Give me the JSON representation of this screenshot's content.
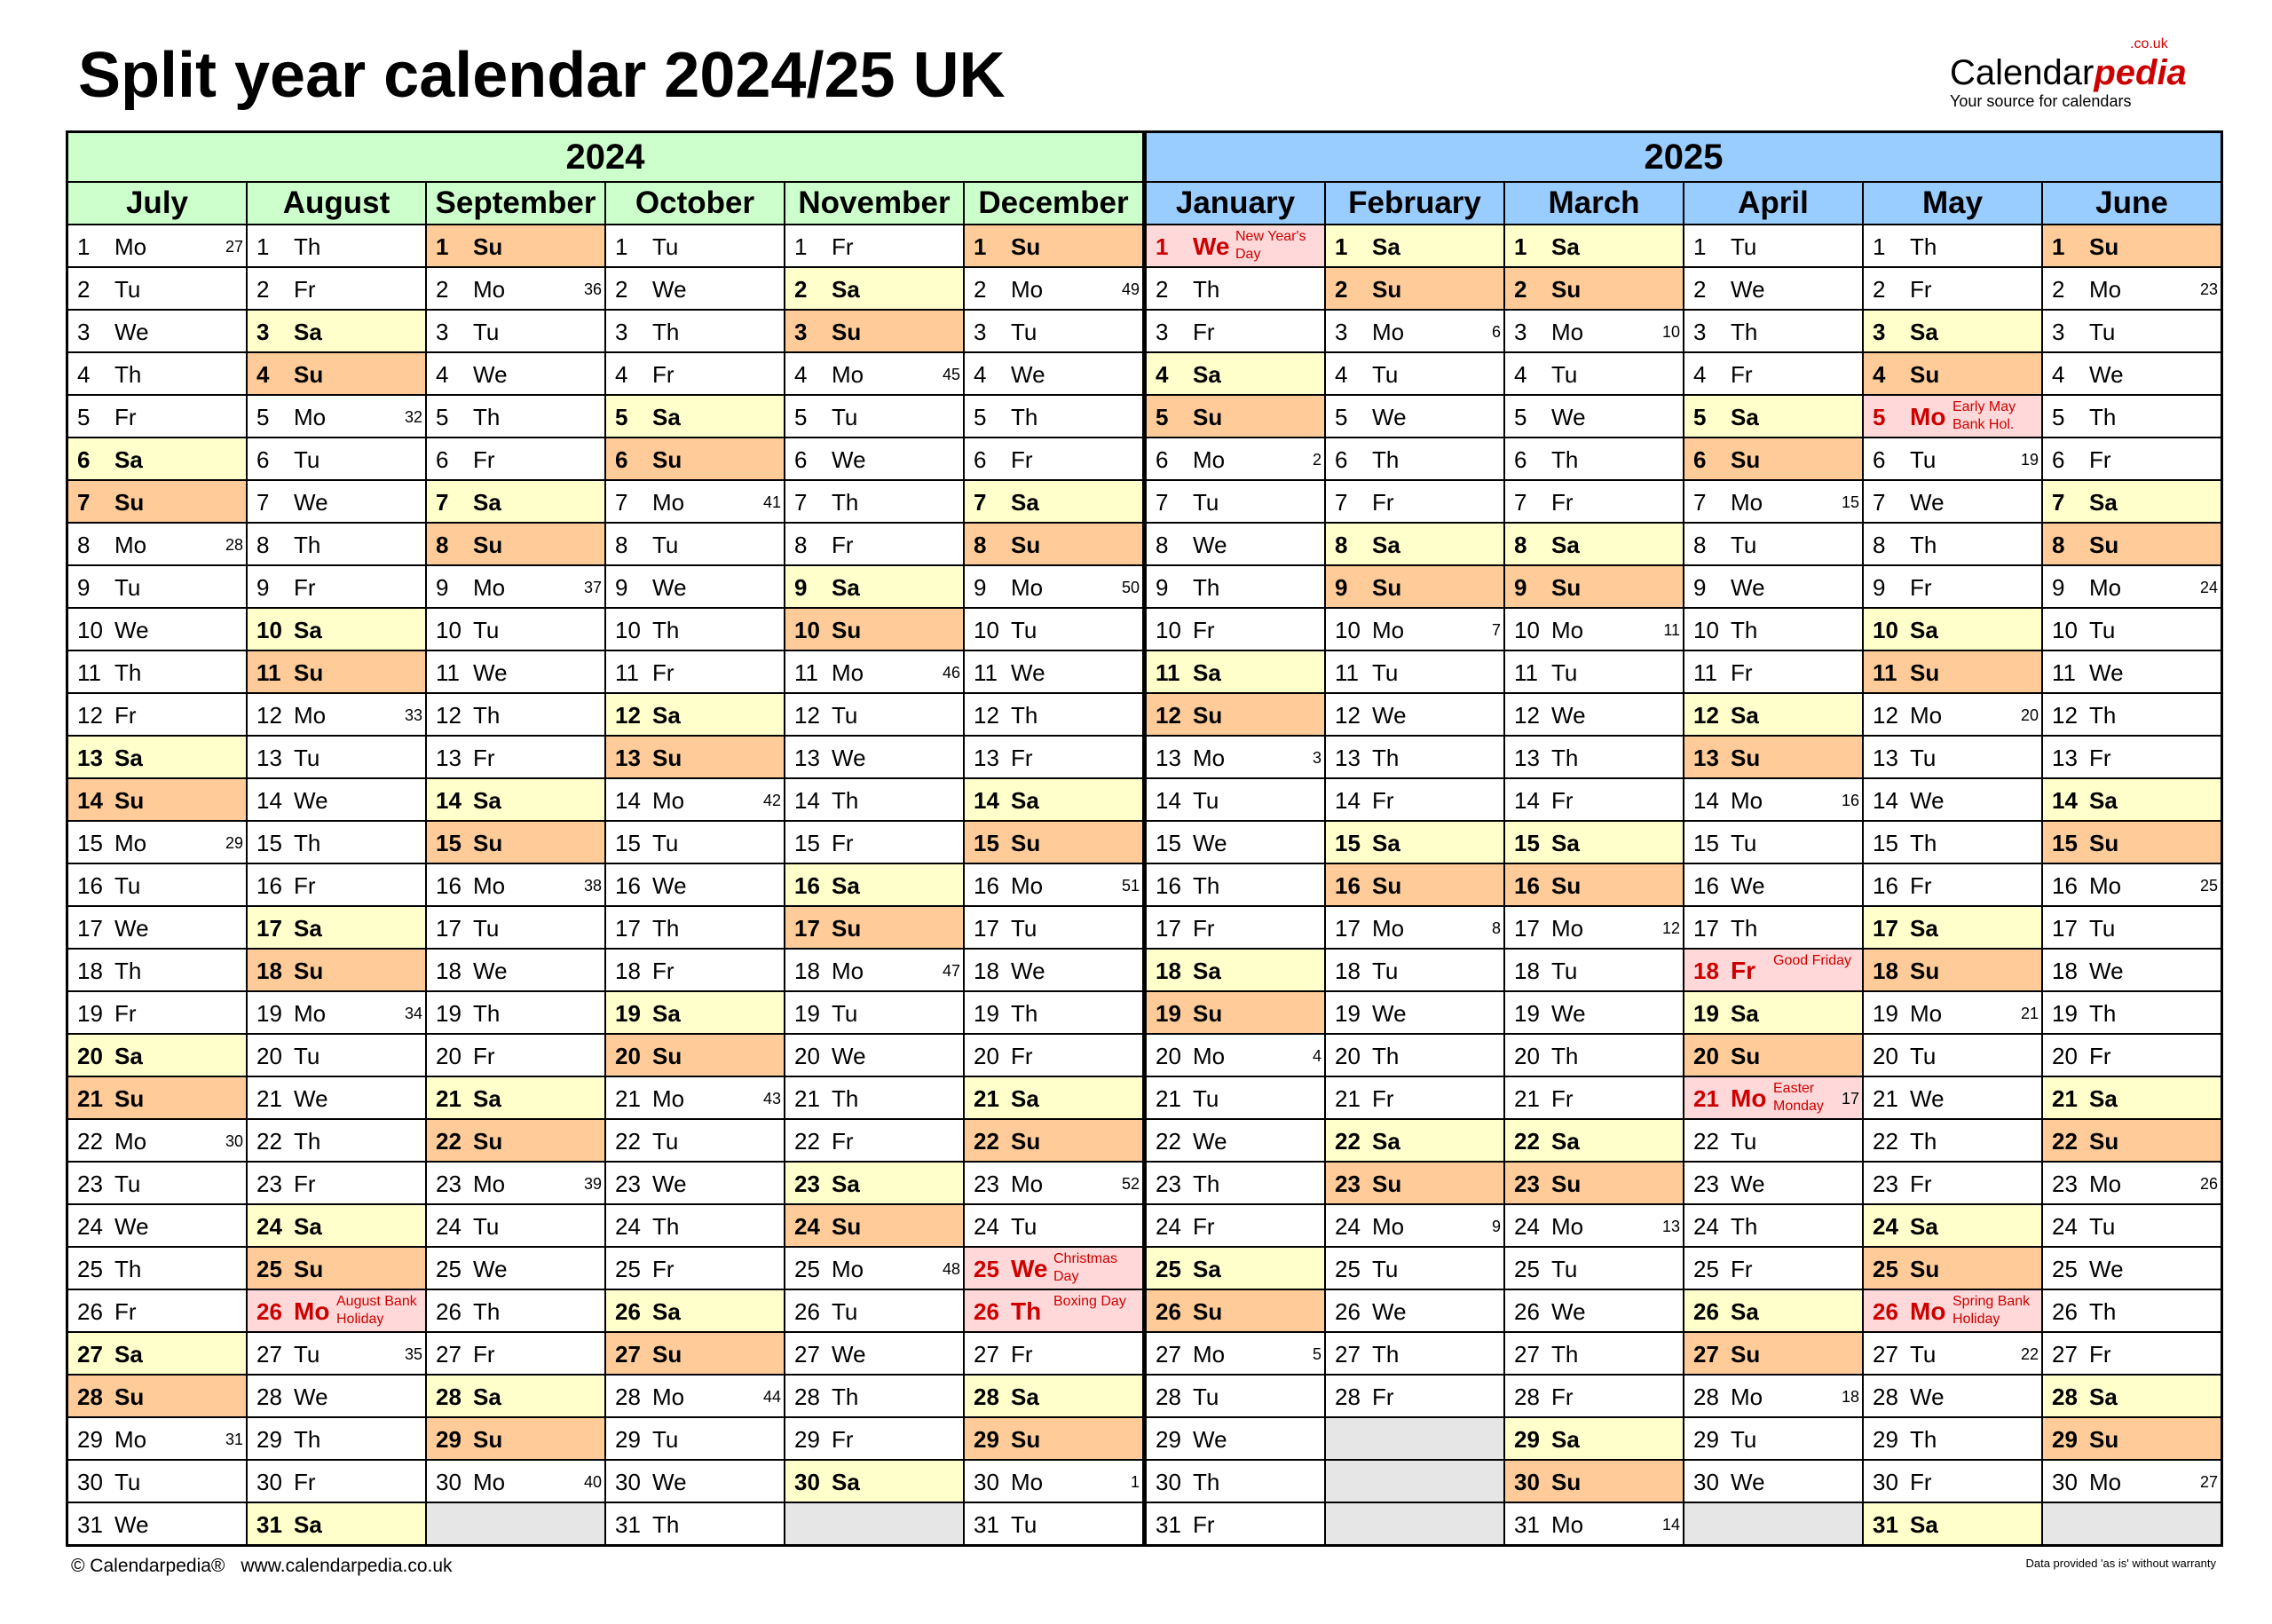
{
  "title": "Split year calendar 2024/25 UK",
  "logo": {
    "text": "Calendar",
    "accent": "pedia",
    "domain": ".co.uk",
    "tagline": "Your source for calendars"
  },
  "years": [
    "2024",
    "2025"
  ],
  "weekdays": [
    "Mo",
    "Tu",
    "We",
    "Th",
    "Fr",
    "Sa",
    "Su"
  ],
  "colors": {
    "year2024": "#ccffcc",
    "year2025": "#99ccff",
    "saturday": "#ffffcc",
    "sunday": "#ffcc99",
    "holiday": "#ffd9d9",
    "holiday_text": "#cc0000",
    "empty": "#e6e6e6"
  },
  "months": [
    {
      "name": "July",
      "year": "2024",
      "first_weekday": "Mo",
      "days": 31,
      "week_numbers": {
        "1": 27,
        "8": 28,
        "15": 29,
        "22": 30,
        "29": 31
      },
      "holidays": {}
    },
    {
      "name": "August",
      "year": "2024",
      "first_weekday": "Th",
      "days": 31,
      "week_numbers": {
        "5": 32,
        "12": 33,
        "19": 34,
        "27": 35
      },
      "holidays": {
        "26": "August Bank Holiday"
      }
    },
    {
      "name": "September",
      "year": "2024",
      "first_weekday": "Su",
      "days": 30,
      "week_numbers": {
        "2": 36,
        "9": 37,
        "16": 38,
        "23": 39,
        "30": 40
      },
      "holidays": {}
    },
    {
      "name": "October",
      "year": "2024",
      "first_weekday": "Tu",
      "days": 31,
      "week_numbers": {
        "7": 41,
        "14": 42,
        "21": 43,
        "28": 44
      },
      "holidays": {}
    },
    {
      "name": "November",
      "year": "2024",
      "first_weekday": "Fr",
      "days": 30,
      "week_numbers": {
        "4": 45,
        "11": 46,
        "18": 47,
        "25": 48
      },
      "holidays": {}
    },
    {
      "name": "December",
      "year": "2024",
      "first_weekday": "Su",
      "days": 31,
      "week_numbers": {
        "2": 49,
        "9": 50,
        "16": 51,
        "23": 52,
        "30": 1
      },
      "holidays": {
        "25": "Christmas Day",
        "26": "Boxing Day"
      }
    },
    {
      "name": "January",
      "year": "2025",
      "first_weekday": "We",
      "days": 31,
      "week_numbers": {
        "6": 2,
        "13": 3,
        "20": 4,
        "27": 5
      },
      "holidays": {
        "1": "New Year's Day"
      }
    },
    {
      "name": "February",
      "year": "2025",
      "first_weekday": "Sa",
      "days": 28,
      "week_numbers": {
        "3": 6,
        "10": 7,
        "17": 8,
        "24": 9
      },
      "holidays": {}
    },
    {
      "name": "March",
      "year": "2025",
      "first_weekday": "Sa",
      "days": 31,
      "week_numbers": {
        "3": 10,
        "10": 11,
        "17": 12,
        "24": 13,
        "31": 14
      },
      "holidays": {}
    },
    {
      "name": "April",
      "year": "2025",
      "first_weekday": "Tu",
      "days": 30,
      "week_numbers": {
        "7": 15,
        "14": 16,
        "21": 17,
        "28": 18
      },
      "holidays": {
        "18": "Good Friday",
        "21": "Easter Monday"
      }
    },
    {
      "name": "May",
      "year": "2025",
      "first_weekday": "Th",
      "days": 31,
      "week_numbers": {
        "6": 19,
        "12": 20,
        "19": 21,
        "27": 22
      },
      "holidays": {
        "5": "Early May Bank Hol.",
        "26": "Spring Bank Holiday"
      }
    },
    {
      "name": "June",
      "year": "2025",
      "first_weekday": "Su",
      "days": 30,
      "week_numbers": {
        "2": 23,
        "9": 24,
        "16": 25,
        "23": 26,
        "30": 27
      },
      "holidays": {}
    }
  ],
  "footer": {
    "copyright": "© Calendarpedia®",
    "url": "www.calendarpedia.co.uk",
    "disclaimer": "Data provided 'as is' without warranty"
  }
}
